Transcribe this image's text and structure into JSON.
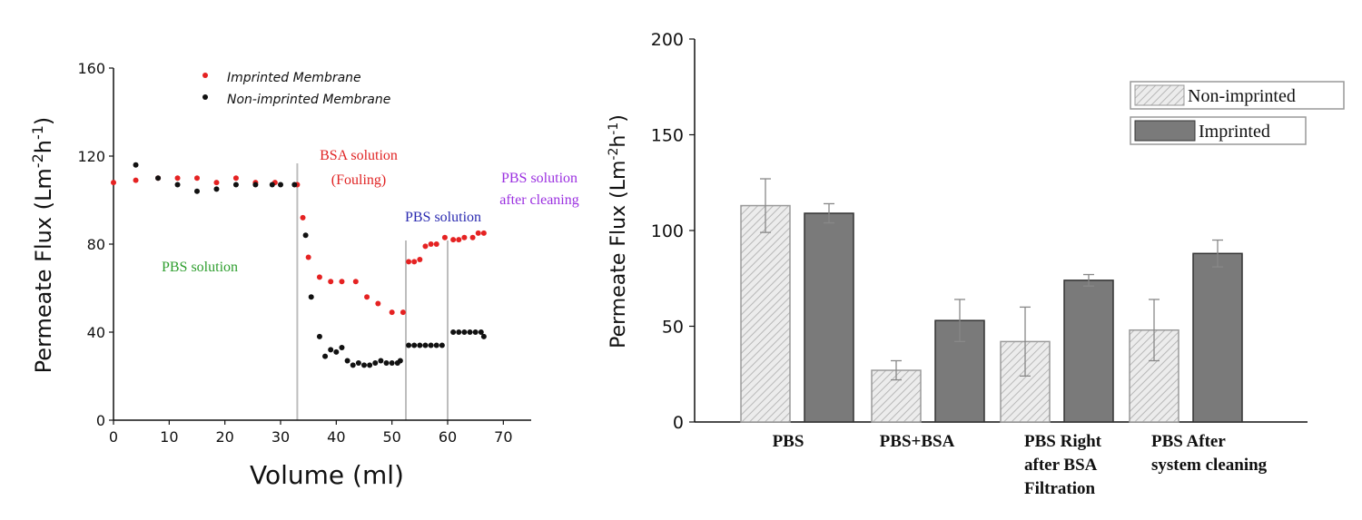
{
  "chart_data": [
    {
      "type": "scatter",
      "xlabel": "Volume (ml)",
      "ylabel": "Permeate Flux (Lm-2h-1)",
      "xlim": [
        0,
        75
      ],
      "ylim": [
        0,
        160
      ],
      "x_ticks": [
        "0",
        "10",
        "20",
        "30",
        "40",
        "50",
        "60",
        "70"
      ],
      "y_ticks": [
        "0",
        "40",
        "80",
        "120",
        "160"
      ],
      "legend_position": "top-center",
      "annotations": [
        {
          "text": "PBS solution",
          "color": "#2e9e2e"
        },
        {
          "text": "BSA solution",
          "color": "#e02424"
        },
        {
          "text": "(Fouling)",
          "color": "#e02424"
        },
        {
          "text": "PBS solution",
          "color": "#2a2ab0"
        },
        {
          "text": "PBS solution",
          "color": "#9b30e0"
        },
        {
          "text": "after cleaning",
          "color": "#9b30e0"
        }
      ],
      "phase_dividers_x": [
        33,
        52.5,
        60
      ],
      "series": [
        {
          "name": "Imprinted Membrane",
          "color": "#e52222",
          "points": [
            [
              0,
              108
            ],
            [
              4,
              109
            ],
            [
              8,
              110
            ],
            [
              11.5,
              110
            ],
            [
              15,
              110
            ],
            [
              18.5,
              108
            ],
            [
              22,
              110
            ],
            [
              25.5,
              108
            ],
            [
              29,
              108
            ],
            [
              33,
              107
            ],
            [
              34,
              92
            ],
            [
              35,
              74
            ],
            [
              37,
              65
            ],
            [
              39,
              63
            ],
            [
              41,
              63
            ],
            [
              43.5,
              63
            ],
            [
              45.5,
              56
            ],
            [
              47.5,
              53
            ],
            [
              50,
              49
            ],
            [
              52,
              49
            ],
            [
              53,
              72
            ],
            [
              54,
              72
            ],
            [
              55,
              73
            ],
            [
              56,
              79
            ],
            [
              57,
              80
            ],
            [
              58,
              80
            ],
            [
              59.5,
              83
            ],
            [
              61,
              82
            ],
            [
              62,
              82
            ],
            [
              63,
              83
            ],
            [
              64.5,
              83
            ],
            [
              65.5,
              85
            ],
            [
              66.5,
              85
            ]
          ]
        },
        {
          "name": "Non-imprinted Membrane",
          "color": "#111111",
          "points": [
            [
              4,
              116
            ],
            [
              8,
              110
            ],
            [
              11.5,
              107
            ],
            [
              15,
              104
            ],
            [
              18.5,
              105
            ],
            [
              22,
              107
            ],
            [
              25.5,
              107
            ],
            [
              28.5,
              107
            ],
            [
              30,
              107
            ],
            [
              32.5,
              107
            ],
            [
              34.5,
              84
            ],
            [
              35.5,
              56
            ],
            [
              37,
              38
            ],
            [
              38,
              29
            ],
            [
              39,
              32
            ],
            [
              40,
              31
            ],
            [
              41,
              33
            ],
            [
              42,
              27
            ],
            [
              43,
              25
            ],
            [
              44,
              26
            ],
            [
              45,
              25
            ],
            [
              46,
              25
            ],
            [
              47,
              26
            ],
            [
              48,
              27
            ],
            [
              49,
              26
            ],
            [
              50,
              26
            ],
            [
              51,
              26
            ],
            [
              51.5,
              27
            ],
            [
              53,
              34
            ],
            [
              54,
              34
            ],
            [
              55,
              34
            ],
            [
              56,
              34
            ],
            [
              57,
              34
            ],
            [
              58,
              34
            ],
            [
              59,
              34
            ],
            [
              61,
              40
            ],
            [
              62,
              40
            ],
            [
              63,
              40
            ],
            [
              64,
              40
            ],
            [
              65,
              40
            ],
            [
              66,
              40
            ],
            [
              66.5,
              38
            ]
          ]
        }
      ]
    },
    {
      "type": "bar",
      "ylabel": "Permeate Flux (Lm-2h-1)",
      "ylim": [
        0,
        200
      ],
      "y_ticks": [
        "0",
        "50",
        "100",
        "150",
        "200"
      ],
      "categories": [
        [
          "PBS"
        ],
        [
          "PBS+BSA"
        ],
        [
          "PBS Right",
          "after BSA",
          "Filtration"
        ],
        [
          "PBS After",
          "system cleaning"
        ]
      ],
      "legend_position": "top-right",
      "series": [
        {
          "name": "Non-imprinted",
          "values": [
            113,
            27,
            42,
            48
          ],
          "errors": [
            14,
            5,
            18,
            16
          ],
          "fill": "hatched",
          "color": "#d4d4d4"
        },
        {
          "name": "Imprinted",
          "values": [
            109,
            53,
            74,
            88
          ],
          "errors": [
            5,
            11,
            3,
            7
          ],
          "fill": "solid",
          "color": "#7a7a7a"
        }
      ]
    }
  ]
}
